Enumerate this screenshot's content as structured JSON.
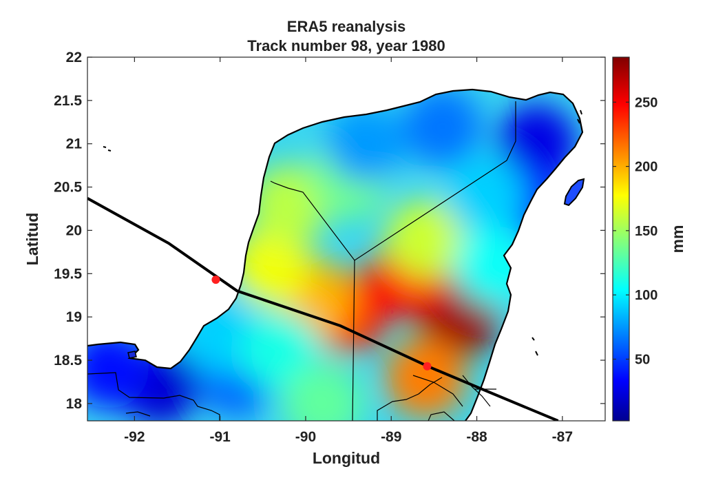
{
  "title": {
    "line1": "ERA5 reanalysis",
    "line2": "Track number 98, year 1980"
  },
  "axes": {
    "xlabel": "Longitud",
    "ylabel": "Latitud",
    "xlim": [
      -92.55,
      -86.5
    ],
    "ylim": [
      17.8,
      22
    ],
    "xticks": [
      -92,
      -91,
      -90,
      -89,
      -88,
      -87
    ],
    "yticks": [
      18,
      18.5,
      19,
      19.5,
      20,
      20.5,
      21,
      21.5,
      22
    ],
    "ytick_labels": [
      "18",
      "18.5",
      "19",
      "19.5",
      "20",
      "20.5",
      "21",
      "21.5",
      "22"
    ]
  },
  "colorbar": {
    "label": "mm",
    "range": [
      2,
      285
    ],
    "ticks": [
      50,
      100,
      150,
      200,
      250
    ],
    "colormap": "jet"
  },
  "track": {
    "points": [
      {
        "lon": -92.55,
        "lat": 20.37
      },
      {
        "lon": -91.6,
        "lat": 19.85
      },
      {
        "lon": -90.8,
        "lat": 19.3
      },
      {
        "lon": -89.6,
        "lat": 18.9
      },
      {
        "lon": -88.55,
        "lat": 18.42
      },
      {
        "lon": -87.9,
        "lat": 18.15
      },
      {
        "lon": -87.05,
        "lat": 17.8
      }
    ],
    "markers": [
      {
        "lon": -91.05,
        "lat": 19.43
      },
      {
        "lon": -88.58,
        "lat": 18.43
      }
    ],
    "line_color": "#000000",
    "marker_color": "#ff2020"
  },
  "rain_centers": [
    {
      "lon": -88.2,
      "lat": 19.0,
      "value": 278
    },
    {
      "lon": -88.8,
      "lat": 19.45,
      "value": 250
    },
    {
      "lon": -89.5,
      "lat": 19.05,
      "value": 245
    },
    {
      "lon": -88.6,
      "lat": 18.3,
      "value": 215
    },
    {
      "lon": -89.9,
      "lat": 19.2,
      "value": 200
    },
    {
      "lon": -90.4,
      "lat": 19.6,
      "value": 175
    },
    {
      "lon": -90.2,
      "lat": 20.3,
      "value": 160
    },
    {
      "lon": -88.6,
      "lat": 19.9,
      "value": 165
    },
    {
      "lon": -89.5,
      "lat": 20.6,
      "value": 140
    },
    {
      "lon": -89.3,
      "lat": 21.0,
      "value": 80
    },
    {
      "lon": -88.4,
      "lat": 21.2,
      "value": 70
    },
    {
      "lon": -87.3,
      "lat": 21.0,
      "value": 30
    },
    {
      "lon": -87.4,
      "lat": 20.3,
      "value": 40
    },
    {
      "lon": -87.9,
      "lat": 20.4,
      "value": 95
    },
    {
      "lon": -91.7,
      "lat": 18.2,
      "value": 25
    },
    {
      "lon": -92.3,
      "lat": 18.4,
      "value": 40
    },
    {
      "lon": -90.8,
      "lat": 18.3,
      "value": 65
    },
    {
      "lon": -91.0,
      "lat": 18.8,
      "value": 95
    },
    {
      "lon": -90.3,
      "lat": 18.6,
      "value": 115
    },
    {
      "lon": -89.8,
      "lat": 18.0,
      "value": 135
    },
    {
      "lon": -87.8,
      "lat": 19.6,
      "value": 110
    }
  ]
}
